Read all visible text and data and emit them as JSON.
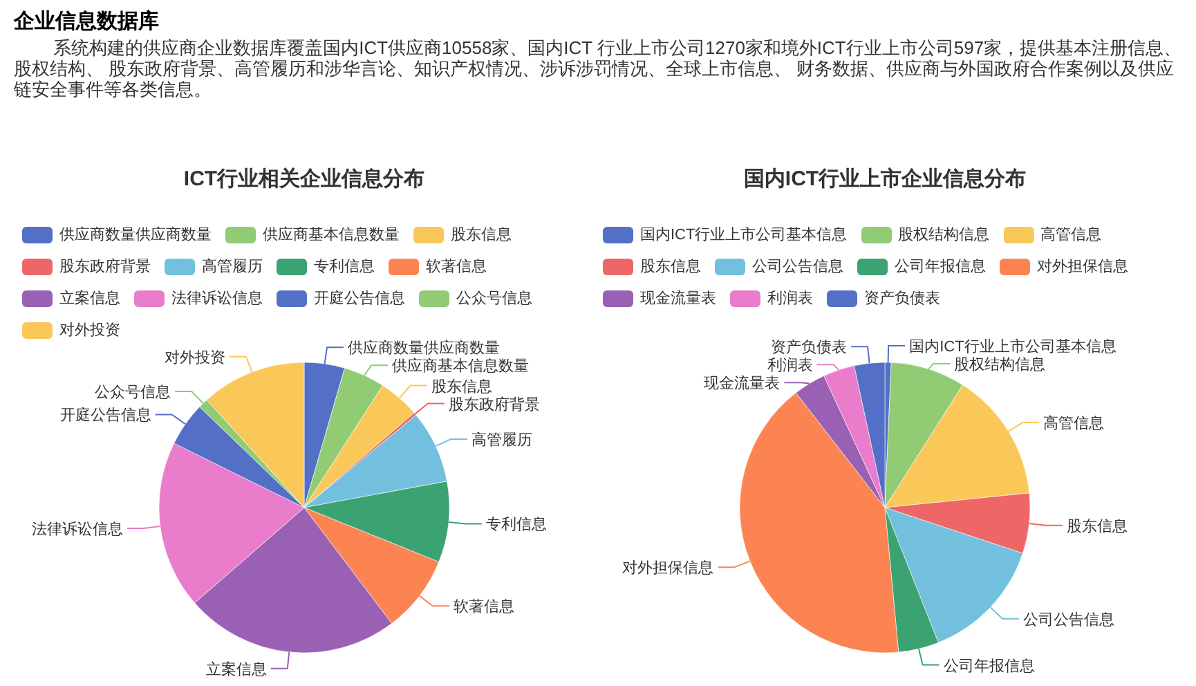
{
  "chart_data": [
    {
      "type": "other",
      "title": "企业信息数据库",
      "subtitle": "系统构建的供应商企业数据库覆盖国内ICT供应商10558家、国内ICT 行业上市公司1270家和境外ICT行业上市公司597家，提供基本注册信息、股权结构、 股东政府背景、高管履历和涉华言论、知识产权情况、涉诉涉罚情况、全球上市信息、 财务数据、供应商与外国政府合作案例以及供应链安全事件等各类信息。"
    },
    {
      "type": "pie",
      "title": "ICT行业相关企业信息分布",
      "legend": "top",
      "categories": [
        "供应商数量供应商数量",
        "供应商基本信息数量",
        "股东信息",
        "股东政府背景",
        "高管履历",
        "专利信息",
        "软著信息",
        "立案信息",
        "法律诉讼信息",
        "开庭公告信息",
        "公众号信息",
        "对外投资"
      ],
      "values": [
        4.5,
        4.6,
        4.6,
        0.3,
        8.1,
        9.0,
        8.6,
        23.9,
        18.7,
        4.9,
        1.1,
        11.7
      ],
      "colors": [
        "#5470c6",
        "#91cc75",
        "#fac858",
        "#ee6666",
        "#73c0de",
        "#3ba272",
        "#fc8452",
        "#9a60b4",
        "#ea7ccc",
        "#5470c6",
        "#91cc75",
        "#fac858"
      ]
    },
    {
      "type": "pie",
      "title": "国内ICT行业上市企业信息分布",
      "legend": "top",
      "categories": [
        "国内ICT行业上市公司基本信息",
        "股权结构信息",
        "高管信息",
        "股东信息",
        "公司公告信息",
        "公司年报信息",
        "对外担保信息",
        "现金流量表",
        "利润表",
        "资产负债表"
      ],
      "values": [
        0.7,
        8.3,
        14.4,
        6.7,
        13.9,
        4.5,
        41.0,
        3.6,
        3.5,
        3.4
      ],
      "colors": [
        "#5470c6",
        "#91cc75",
        "#fac858",
        "#ee6666",
        "#73c0de",
        "#3ba272",
        "#fc8452",
        "#9a60b4",
        "#ea7ccc",
        "#5470c6"
      ]
    }
  ]
}
